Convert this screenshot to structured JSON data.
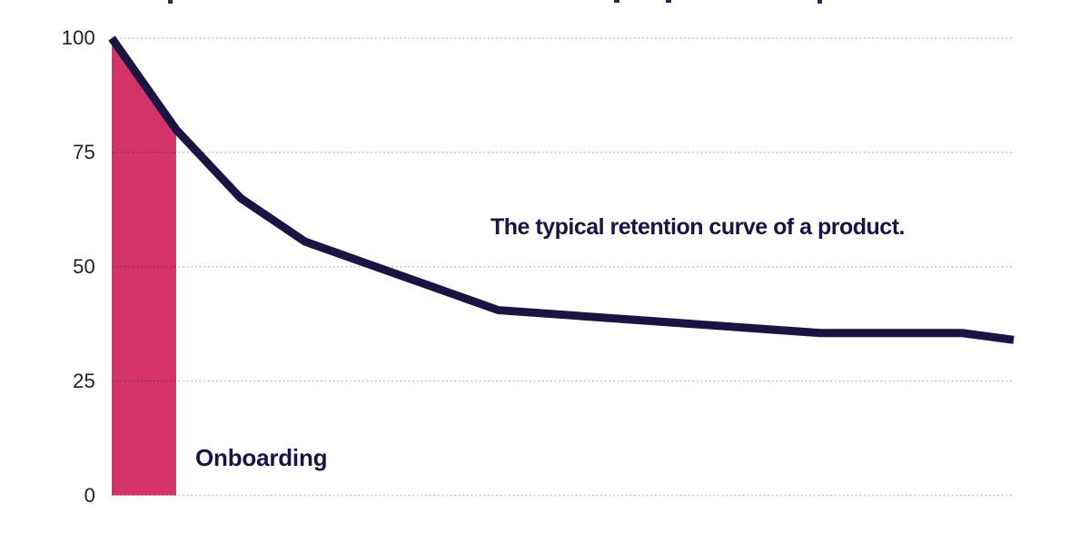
{
  "page": {
    "background": "#ffffff",
    "description_visible_text_only": true
  },
  "chart_data": {
    "type": "line",
    "title": "The typical retention curve of a product.",
    "xlabel": "",
    "ylabel": "",
    "x_tick_labels": [],
    "y_ticks": [
      "100",
      "75",
      "50",
      "25",
      "0"
    ],
    "ylim": [
      0,
      100
    ],
    "xlim": [
      0,
      14
    ],
    "grid": "horizontal-dotted",
    "legend_position": "none",
    "series": [
      {
        "name": "retention-curve",
        "color": "#1b1342",
        "stroke_width": 9,
        "points": [
          {
            "x": 0,
            "y": 100
          },
          {
            "x": 1,
            "y": 80
          },
          {
            "x": 2,
            "y": 65
          },
          {
            "x": 3,
            "y": 55.5
          },
          {
            "x": 6,
            "y": 40.5
          },
          {
            "x": 11,
            "y": 35.5
          },
          {
            "x": 13.2,
            "y": 35.5
          },
          {
            "x": 14,
            "y": 34
          }
        ]
      }
    ],
    "highlight_region": {
      "label": "Onboarding",
      "x_start": 0,
      "x_end": 1,
      "baseline_value": 0,
      "color": "#d33369"
    }
  },
  "colors": {
    "line": "#1b1342",
    "region_fill": "#d33369",
    "grid_dots": "rgba(0,0,0,0.24)",
    "tick_label": "#1f1f1f",
    "annotation_text": "#1b1342"
  }
}
